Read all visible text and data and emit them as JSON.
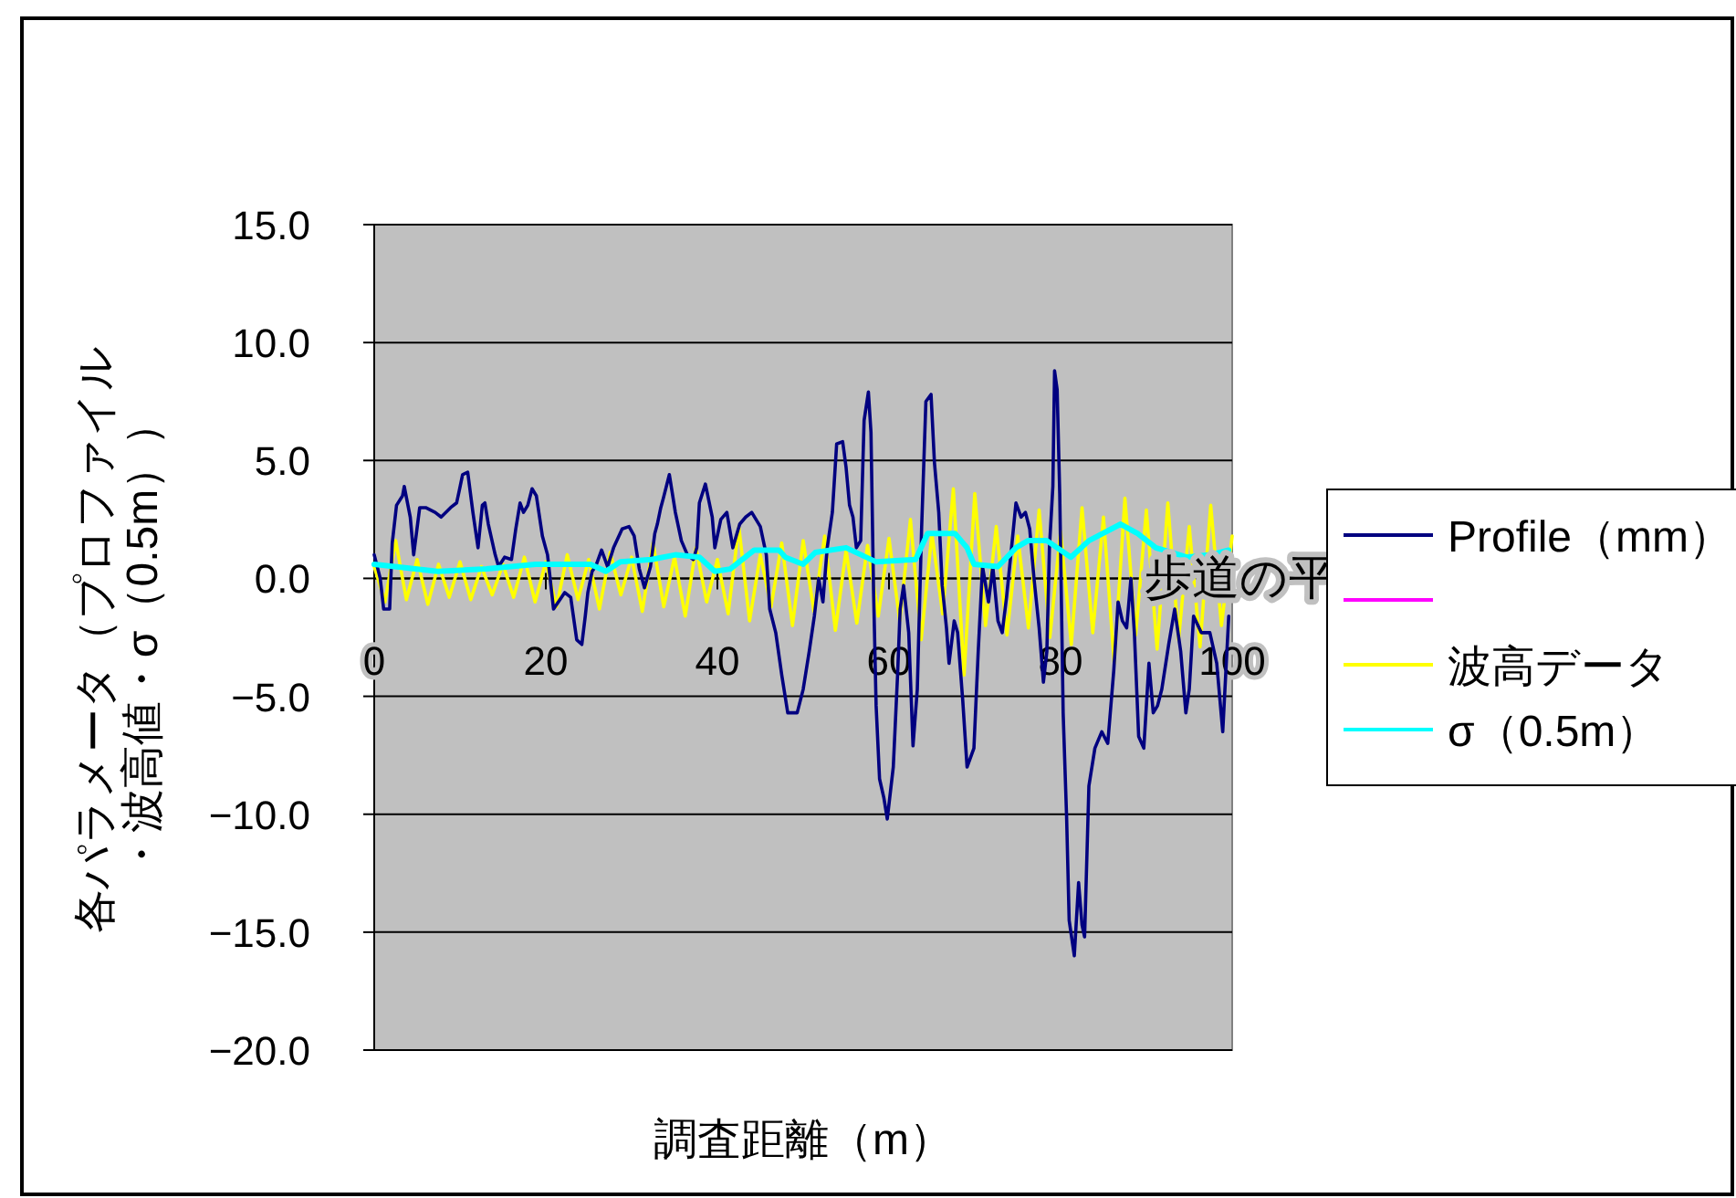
{
  "chart_data": {
    "type": "line",
    "xlabel": "調査距離（m）",
    "ylabel": "各パラメータ（プロファイル・波高値・σ（0.5m））",
    "annotations": [
      "歩道の平"
    ],
    "xlim": [
      0,
      100
    ],
    "xticks": [
      0,
      20,
      40,
      60,
      80,
      100
    ],
    "ylim": [
      -20,
      15
    ],
    "yticks": [
      {
        "value": 15,
        "label": "15.0"
      },
      {
        "value": 10,
        "label": "10.0"
      },
      {
        "value": 5,
        "label": "5.0"
      },
      {
        "value": 0,
        "label": "0.0"
      },
      {
        "value": -5,
        "label": "−5.0"
      },
      {
        "value": -10,
        "label": "−10.0"
      },
      {
        "value": -15,
        "label": "−15.0"
      },
      {
        "value": -20,
        "label": "−20.0"
      }
    ],
    "grid": "y",
    "legend": "right",
    "marker": "none",
    "line_style": "solid",
    "series": [
      {
        "name": "Profile（mm）",
        "color": "#000080",
        "x": [
          0,
          0.7,
          1.1,
          1.8,
          2.1,
          2.6,
          3.3,
          3.5,
          4.2,
          4.6,
          5.3,
          6.0,
          7.1,
          7.8,
          8.9,
          9.6,
          9.9,
          10.3,
          10.9,
          11.5,
          12.1,
          12.6,
          12.9,
          13.3,
          14.1,
          14.5,
          15.2,
          16.0,
          16.5,
          17.0,
          17.4,
          17.9,
          18.4,
          18.9,
          19.6,
          20.2,
          20.9,
          22.2,
          22.9,
          23.6,
          24.2,
          24.6,
          24.9,
          25.4,
          25.8,
          26.5,
          27.2,
          27.9,
          28.9,
          29.7,
          30.3,
          30.9,
          31.5,
          32.2,
          32.7,
          33.0,
          33.4,
          33.7,
          34.4,
          35.1,
          35.8,
          36.5,
          37.2,
          37.6,
          37.9,
          38.6,
          39.4,
          39.7,
          40.4,
          41.1,
          41.8,
          42.6,
          43.3,
          44.0,
          45.0,
          45.7,
          46.1,
          46.8,
          47.5,
          48.2,
          49.3,
          50.0,
          50.7,
          51.3,
          51.8,
          52.3,
          52.8,
          53.4,
          53.9,
          54.6,
          55.0,
          55.4,
          55.8,
          56.2,
          56.7,
          57.1,
          57.6,
          57.9,
          58.2,
          58.5,
          58.9,
          59.4,
          59.8,
          60.5,
          61.0,
          61.3,
          61.7,
          62.3,
          62.8,
          63.3,
          63.8,
          64.3,
          64.9,
          65.3,
          65.8,
          66.2,
          66.7,
          67.0,
          67.6,
          68.0,
          68.6,
          69.1,
          69.9,
          70.4,
          70.9,
          71.6,
          72.1,
          72.7,
          73.2,
          73.7,
          74.2,
          74.8,
          75.4,
          75.9,
          76.4,
          76.9,
          77.5,
          78.0,
          78.4,
          78.7,
          79.1,
          79.3,
          79.6,
          79.9,
          80.3,
          80.7,
          81.0,
          81.6,
          82.1,
          82.5,
          82.8,
          83.3,
          84.0,
          84.8,
          85.5,
          86.2,
          86.7,
          87.2,
          87.7,
          88.2,
          88.6,
          89.1,
          89.7,
          90.3,
          90.8,
          91.3,
          91.8,
          92.6,
          93.3,
          94.0,
          94.6,
          95.0,
          95.5,
          96.4,
          97.4,
          98.2,
          98.9,
          99.6
        ],
        "values": [
          1.0,
          0,
          -1.3,
          -1.3,
          1.5,
          3.1,
          3.5,
          3.9,
          2.6,
          1.0,
          3.0,
          3.0,
          2.8,
          2.6,
          3.0,
          3.2,
          3.7,
          4.4,
          4.5,
          2.8,
          1.3,
          3.1,
          3.2,
          2.3,
          1.0,
          0.5,
          0.9,
          0.8,
          2.1,
          3.2,
          2.8,
          3.1,
          3.8,
          3.5,
          1.8,
          1.0,
          -1.3,
          -0.6,
          -0.8,
          -2.6,
          -2.8,
          -1.6,
          -0.6,
          0.3,
          0.5,
          1.2,
          0.5,
          1.3,
          2.1,
          2.2,
          1.8,
          0.4,
          -0.4,
          0.5,
          1.9,
          2.3,
          3.0,
          3.4,
          4.4,
          2.8,
          1.6,
          1.0,
          0.8,
          1.3,
          3.2,
          4.0,
          2.6,
          1.3,
          2.5,
          2.8,
          1.3,
          2.3,
          2.6,
          2.8,
          2.2,
          1.0,
          -1.3,
          -2.3,
          -4.1,
          -5.7,
          -5.7,
          -4.7,
          -3.1,
          -1.6,
          0,
          -1.0,
          1.3,
          2.8,
          5.7,
          5.8,
          4.7,
          3.1,
          2.6,
          1.3,
          1.6,
          6.7,
          7.9,
          6.2,
          -0.5,
          -5.4,
          -8.5,
          -9.3,
          -10.2,
          -8.0,
          -4.1,
          -1.3,
          -0.3,
          -2.3,
          -7.1,
          -4.7,
          2.1,
          7.5,
          7.8,
          4.9,
          2.8,
          -0.3,
          -2.1,
          -3.6,
          -1.8,
          -2.3,
          -5.2,
          -8.0,
          -7.2,
          -3.1,
          0.5,
          -1.0,
          0.5,
          -1.8,
          -2.3,
          -0.8,
          1.0,
          3.2,
          2.6,
          2.8,
          2.1,
          0,
          -2.1,
          -4.4,
          -3.1,
          1.3,
          3.9,
          8.8,
          8.0,
          3.6,
          -5.7,
          -10.1,
          -14.5,
          -16.0,
          -12.9,
          -14.7,
          -15.2,
          -8.8,
          -7.2,
          -6.5,
          -7.0,
          -3.9,
          -1.0,
          -1.8,
          -2.1,
          0,
          -2.3,
          -6.7,
          -7.2,
          -3.6,
          -5.7,
          -5.4,
          -4.7,
          -2.8,
          -1.3,
          -3.1,
          -5.7,
          -4.7,
          -1.6,
          -2.3,
          -2.3,
          -3.6,
          -6.5,
          -1.6
        ]
      },
      {
        "color": "#ff00ff"
      },
      {
        "name": "波高データ",
        "color": "#ffff00",
        "x": [
          0,
          1.25,
          2.5,
          3.75,
          5,
          6.25,
          7.5,
          8.75,
          10,
          11.25,
          12.5,
          13.75,
          15,
          16.25,
          17.5,
          18.75,
          20,
          21.25,
          22.5,
          23.75,
          25,
          26.25,
          27.5,
          28.75,
          30,
          31.25,
          32.5,
          33.75,
          35,
          36.25,
          37.5,
          38.75,
          40,
          41.25,
          42.5,
          43.75,
          45,
          46.25,
          47.5,
          48.75,
          50,
          51.25,
          52.5,
          53.75,
          55,
          56.25,
          57.5,
          58.75,
          60,
          61.25,
          62.5,
          63.75,
          65,
          66.25,
          67.5,
          68.75,
          70,
          71.25,
          72.5,
          73.75,
          75,
          76.25,
          77.5,
          78.75,
          80,
          81.25,
          82.5,
          83.75,
          85,
          86.25,
          87.5,
          88.75,
          90,
          91.25,
          92.5,
          93.75,
          95,
          96.25,
          97.5,
          98.75,
          100
        ],
        "values": [
          0.5,
          -1.0,
          1.6,
          -0.9,
          0.8,
          -1.1,
          0.6,
          -0.8,
          0.7,
          -0.9,
          0.5,
          -0.7,
          0.6,
          -0.8,
          0.9,
          -1.0,
          0.7,
          -1.2,
          1.0,
          -0.9,
          0.8,
          -1.3,
          1.1,
          -0.7,
          0.9,
          -1.4,
          1.5,
          -1.2,
          0.9,
          -1.6,
          1.3,
          -1.0,
          0.8,
          -1.5,
          2.2,
          -1.8,
          1.0,
          -1.2,
          1.5,
          -2.0,
          1.6,
          -1.4,
          1.8,
          -2.2,
          1.2,
          -1.9,
          1.4,
          -1.6,
          1.7,
          -1.8,
          2.5,
          -2.6,
          1.9,
          -1.5,
          3.8,
          -4.1,
          3.6,
          -2.0,
          2.2,
          -2.4,
          1.8,
          -2.1,
          2.9,
          -2.5,
          2.0,
          -2.8,
          3.0,
          -2.3,
          2.6,
          -3.6,
          3.4,
          -2.4,
          2.9,
          -3.0,
          3.2,
          -2.6,
          2.2,
          -2.9,
          3.1,
          -2.0,
          1.8
        ]
      },
      {
        "name": "σ（0.5m）",
        "color": "#00ffff",
        "x": [
          0,
          7.4,
          13.1,
          18.8,
          25.2,
          27.0,
          28.7,
          32.3,
          35.1,
          37.9,
          39.7,
          41.5,
          44.3,
          47.2,
          47.9,
          50.0,
          51.4,
          55.0,
          58.5,
          63.1,
          64.5,
          67.7,
          69.1,
          69.9,
          72.7,
          74.8,
          76.2,
          78.4,
          81.2,
          83.3,
          87.0,
          89.0,
          91.1,
          94.7,
          97.5,
          99.6
        ],
        "values": [
          0.6,
          0.3,
          0.4,
          0.6,
          0.6,
          0.3,
          0.7,
          0.8,
          1.0,
          0.9,
          0.3,
          0.4,
          1.2,
          1.2,
          0.9,
          0.6,
          1.1,
          1.3,
          0.7,
          0.8,
          1.9,
          1.9,
          1.3,
          0.6,
          0.5,
          1.3,
          1.6,
          1.6,
          0.9,
          1.6,
          2.3,
          1.9,
          1.3,
          0.9,
          1.0,
          1.2
        ]
      }
    ]
  }
}
